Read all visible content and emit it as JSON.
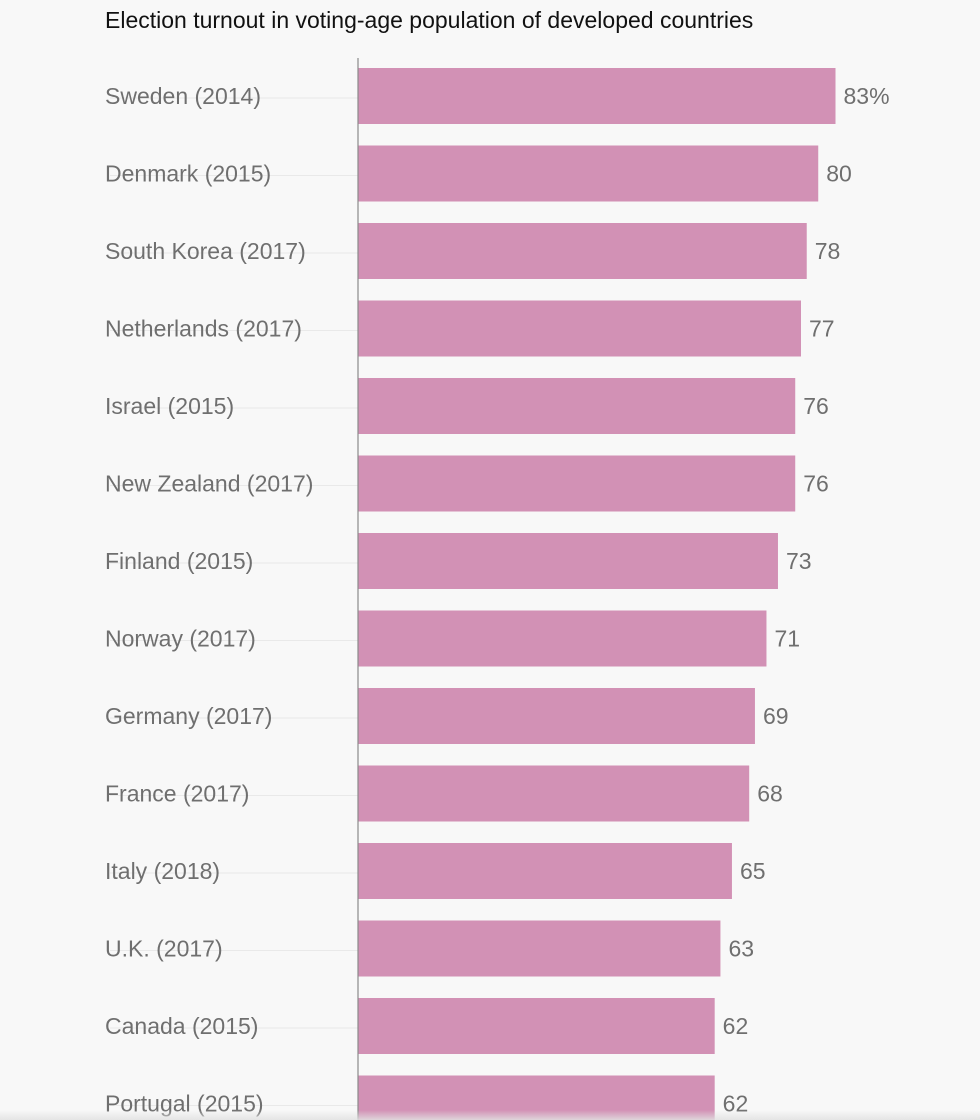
{
  "chart_data": {
    "type": "bar",
    "orientation": "horizontal",
    "title": "Election turnout in voting-age population of developed countries",
    "xlabel": "",
    "ylabel": "",
    "categories": [
      "Sweden (2014)",
      "Denmark (2015)",
      "South Korea (2017)",
      "Netherlands (2017)",
      "Israel (2015)",
      "New Zealand (2017)",
      "Finland (2015)",
      "Norway (2017)",
      "Germany (2017)",
      "France (2017)",
      "Italy (2018)",
      "U.K. (2017)",
      "Canada (2015)",
      "Portugal (2015)"
    ],
    "values": [
      83,
      80,
      78,
      77,
      76,
      76,
      73,
      71,
      69,
      68,
      65,
      63,
      62,
      62
    ],
    "value_labels": [
      "83%",
      "80",
      "78",
      "77",
      "76",
      "76",
      "73",
      "71",
      "69",
      "68",
      "65",
      "63",
      "62",
      "62"
    ],
    "xlim": [
      0,
      100
    ],
    "grid": false,
    "legend": "none",
    "colors": {
      "bar": "#d291b5",
      "axis": "#8a8a8a",
      "label": "#6f6f6f",
      "title": "#111111",
      "guide": "#e9e9e9",
      "background": "#f8f8f8"
    }
  }
}
